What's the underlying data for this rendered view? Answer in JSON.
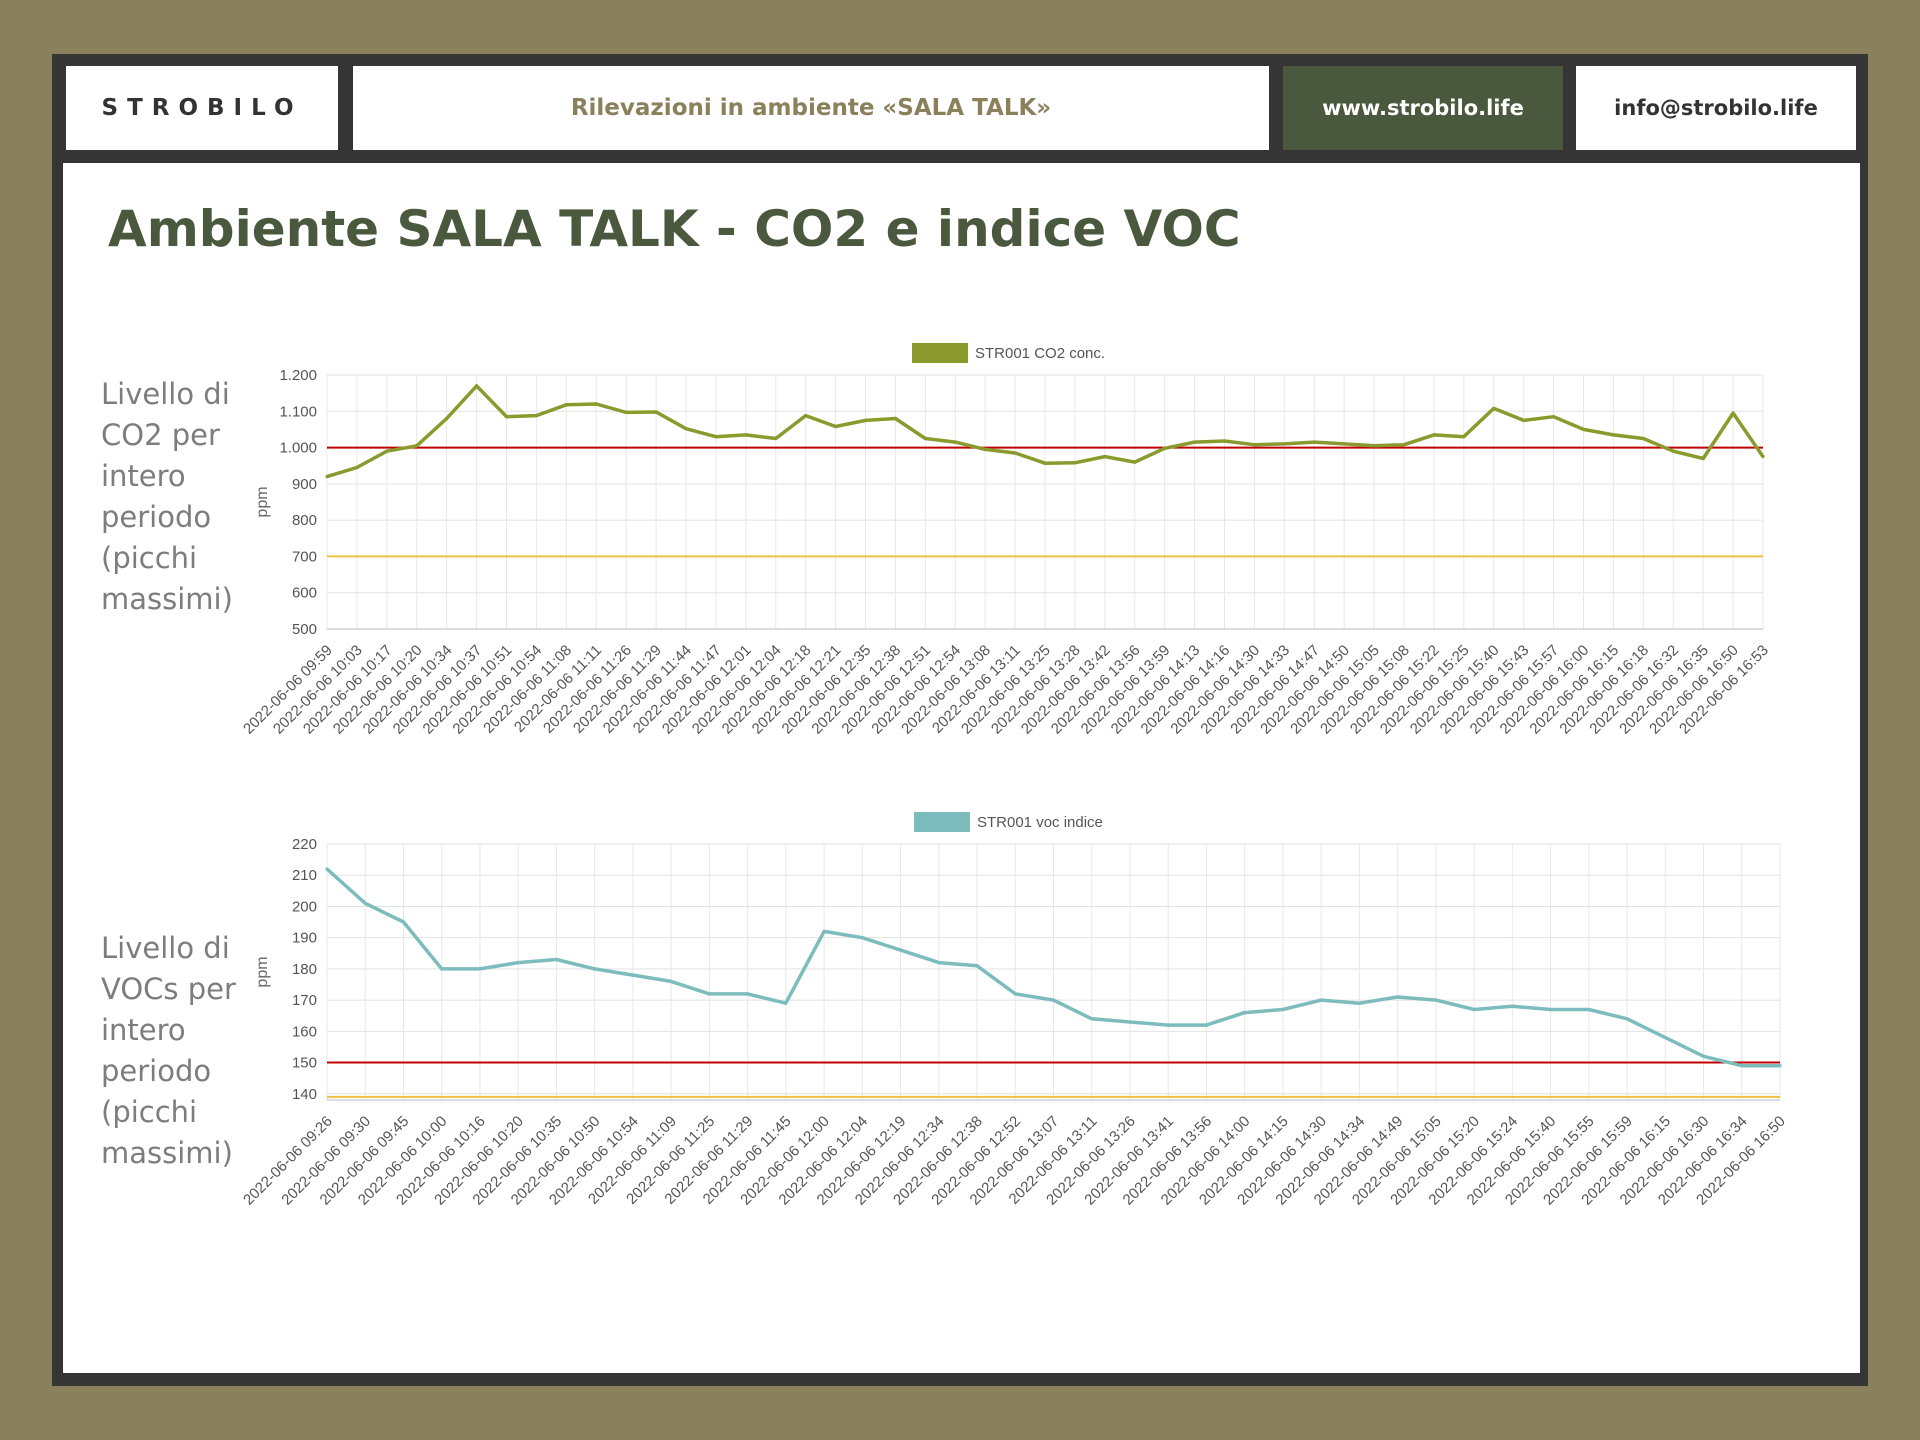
{
  "header": {
    "logo": "STROBILO",
    "title": "Rilevazioni in ambiente «SALA TALK»",
    "website": "www.strobilo.life",
    "email": "info@strobilo.life"
  },
  "page_title": "Ambiente SALA TALK - CO2 e indice VOC",
  "labels": {
    "co2": "Livello di CO2 per intero periodo (picchi massimi)",
    "voc": "Livello di VOCs per intero periodo (picchi massimi)"
  },
  "chart_data": [
    {
      "type": "line",
      "legend": "STR001 CO2 conc.",
      "ylabel": "ppm",
      "ylim": [
        500,
        1200
      ],
      "yticks": [
        500,
        600,
        700,
        800,
        900,
        1000,
        1100,
        1200
      ],
      "ytick_labels": [
        "500",
        "600",
        "700",
        "800",
        "900",
        "1.000",
        "1.100",
        "1.200"
      ],
      "line_color": "#8a9a2c",
      "threshold_lines": [
        {
          "value": 1000,
          "color": "#c00000"
        },
        {
          "value": 700,
          "color": "#f0c040"
        }
      ],
      "x": [
        "2022-06-06 09:59",
        "2022-06-06 10:03",
        "2022-06-06 10:17",
        "2022-06-06 10:20",
        "2022-06-06 10:34",
        "2022-06-06 10:37",
        "2022-06-06 10:51",
        "2022-06-06 10:54",
        "2022-06-06 11:08",
        "2022-06-06 11:11",
        "2022-06-06 11:26",
        "2022-06-06 11:29",
        "2022-06-06 11:44",
        "2022-06-06 11:47",
        "2022-06-06 12:01",
        "2022-06-06 12:04",
        "2022-06-06 12:18",
        "2022-06-06 12:21",
        "2022-06-06 12:35",
        "2022-06-06 12:38",
        "2022-06-06 12:51",
        "2022-06-06 12:54",
        "2022-06-06 13:08",
        "2022-06-06 13:11",
        "2022-06-06 13:25",
        "2022-06-06 13:28",
        "2022-06-06 13:42",
        "2022-06-06 13:56",
        "2022-06-06 13:59",
        "2022-06-06 14:13",
        "2022-06-06 14:16",
        "2022-06-06 14:30",
        "2022-06-06 14:33",
        "2022-06-06 14:47",
        "2022-06-06 14:50",
        "2022-06-06 15:05",
        "2022-06-06 15:08",
        "2022-06-06 15:22",
        "2022-06-06 15:25",
        "2022-06-06 15:40",
        "2022-06-06 15:43",
        "2022-06-06 15:57",
        "2022-06-06 16:00",
        "2022-06-06 16:15",
        "2022-06-06 16:18",
        "2022-06-06 16:32",
        "2022-06-06 16:35",
        "2022-06-06 16:50",
        "2022-06-06 16:53"
      ],
      "y": [
        920,
        945,
        990,
        1005,
        1080,
        1170,
        1085,
        1088,
        1118,
        1120,
        1097,
        1098,
        1052,
        1030,
        1035,
        1025,
        1088,
        1058,
        1075,
        1080,
        1025,
        1015,
        995,
        985,
        957,
        958,
        975,
        960,
        998,
        1015,
        1018,
        1008,
        1010,
        1015,
        1010,
        1005,
        1008,
        1035,
        1030,
        1108,
        1075,
        1085,
        1050,
        1035,
        1025,
        990,
        970,
        1095,
        975
      ]
    },
    {
      "type": "line",
      "legend": "STR001 voc indice",
      "ylabel": "ppm",
      "ylim": [
        138,
        220
      ],
      "yticks": [
        140,
        150,
        160,
        170,
        180,
        190,
        200,
        210,
        220
      ],
      "ytick_labels": [
        "140",
        "150",
        "160",
        "170",
        "180",
        "190",
        "200",
        "210",
        "220"
      ],
      "line_color": "#7dbcbc",
      "threshold_lines": [
        {
          "value": 150,
          "color": "#c00000"
        },
        {
          "value": 139,
          "color": "#f0c040"
        }
      ],
      "x": [
        "2022-06-06 09:26",
        "2022-06-06 09:30",
        "2022-06-06 09:45",
        "2022-06-06 10:00",
        "2022-06-06 10:16",
        "2022-06-06 10:20",
        "2022-06-06 10:35",
        "2022-06-06 10:50",
        "2022-06-06 10:54",
        "2022-06-06 11:09",
        "2022-06-06 11:25",
        "2022-06-06 11:29",
        "2022-06-06 11:45",
        "2022-06-06 12:00",
        "2022-06-06 12:04",
        "2022-06-06 12:19",
        "2022-06-06 12:34",
        "2022-06-06 12:38",
        "2022-06-06 12:52",
        "2022-06-06 13:07",
        "2022-06-06 13:11",
        "2022-06-06 13:26",
        "2022-06-06 13:41",
        "2022-06-06 13:56",
        "2022-06-06 14:00",
        "2022-06-06 14:15",
        "2022-06-06 14:30",
        "2022-06-06 14:34",
        "2022-06-06 14:49",
        "2022-06-06 15:05",
        "2022-06-06 15:20",
        "2022-06-06 15:24",
        "2022-06-06 15:40",
        "2022-06-06 15:55",
        "2022-06-06 15:59",
        "2022-06-06 16:15",
        "2022-06-06 16:30",
        "2022-06-06 16:34",
        "2022-06-06 16:50"
      ],
      "y": [
        212,
        201,
        195,
        180,
        180,
        182,
        183,
        180,
        178,
        176,
        172,
        172,
        169,
        192,
        190,
        186,
        182,
        181,
        172,
        170,
        164,
        163,
        162,
        162,
        166,
        167,
        170,
        169,
        171,
        170,
        167,
        168,
        167,
        167,
        164,
        158,
        152,
        149,
        149
      ]
    }
  ]
}
